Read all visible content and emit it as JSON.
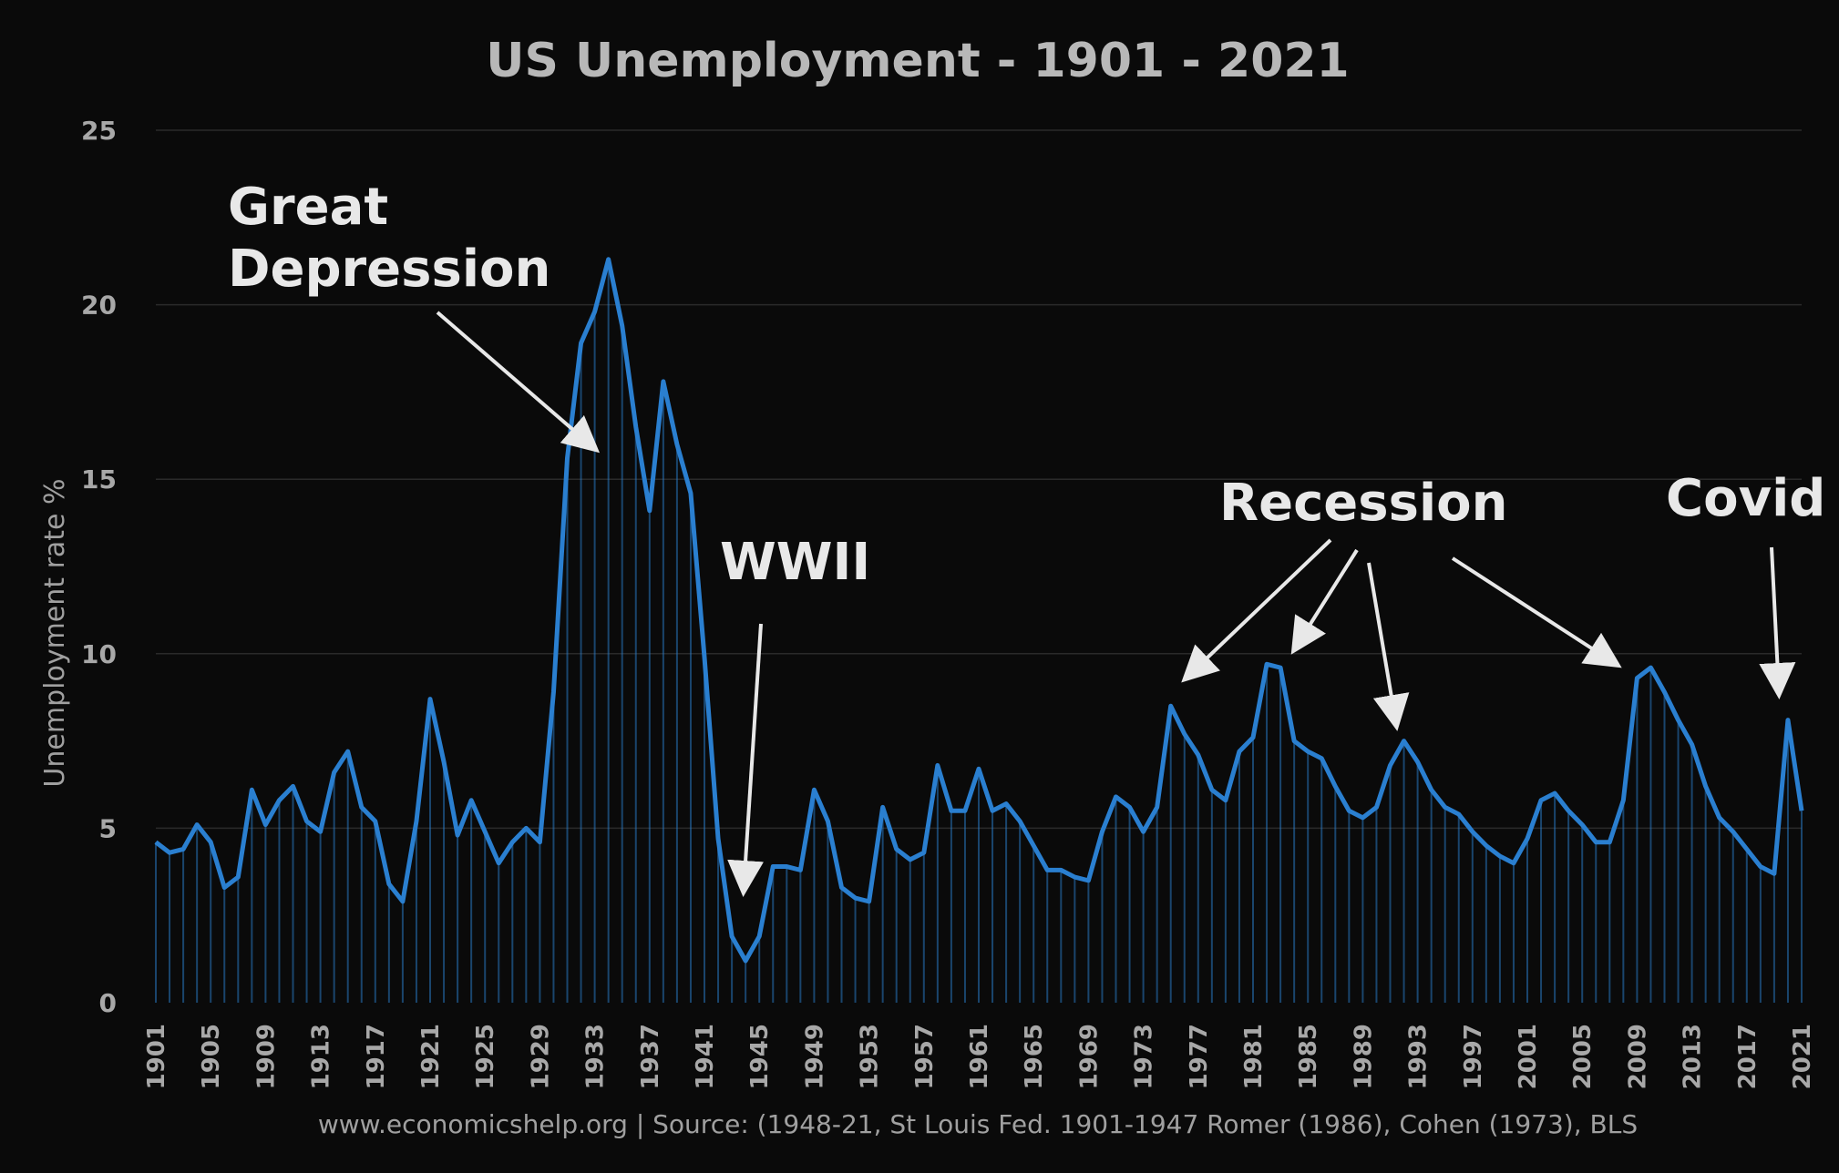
{
  "chart_data": {
    "type": "line",
    "title": "US Unemployment - 1901 - 2021",
    "ylabel": "Unemployment rate %",
    "xlabel": "",
    "source": "www.economicshelp.org  | Source: (1948-21, St Louis Fed. 1901-1947 Romer (1986), Cohen (1973), BLS",
    "ylim": [
      0,
      25
    ],
    "yticks": [
      "0",
      "5",
      "10",
      "15",
      "20",
      "25"
    ],
    "xticks": [
      "1901",
      "1905",
      "1909",
      "1913",
      "1917",
      "1921",
      "1925",
      "1929",
      "1933",
      "1937",
      "1941",
      "1945",
      "1949",
      "1953",
      "1957",
      "1961",
      "1965",
      "1969",
      "1973",
      "1977",
      "1981",
      "1985",
      "1989",
      "1993",
      "1997",
      "2001",
      "2005",
      "2009",
      "2013",
      "2017",
      "2021"
    ],
    "grid": true,
    "line_color": "#2a7fd0",
    "x_start": 1901,
    "series": [
      {
        "values": [
          4.6,
          4.3,
          4.4,
          5.1,
          4.6,
          3.3,
          3.6,
          6.1,
          5.1,
          5.8,
          6.2,
          5.2,
          4.9,
          6.6,
          7.2,
          5.6,
          5.2,
          3.4,
          2.9,
          5.2,
          8.7,
          6.9,
          4.8,
          5.8,
          4.9,
          4.0,
          4.6,
          5.0,
          4.6,
          8.9,
          15.6,
          18.9,
          19.8,
          21.3,
          19.4,
          16.5,
          14.1,
          17.8,
          16.0,
          14.6,
          9.9,
          4.7,
          1.9,
          1.2,
          1.9,
          3.9,
          3.9,
          3.8,
          6.1,
          5.2,
          3.3,
          3.0,
          2.9,
          5.6,
          4.4,
          4.1,
          4.3,
          6.8,
          5.5,
          5.5,
          6.7,
          5.5,
          5.7,
          5.2,
          4.5,
          3.8,
          3.8,
          3.6,
          3.5,
          4.9,
          5.9,
          5.6,
          4.9,
          5.6,
          8.5,
          7.7,
          7.1,
          6.1,
          5.8,
          7.2,
          7.6,
          9.7,
          9.6,
          7.5,
          7.2,
          7.0,
          6.2,
          5.5,
          5.3,
          5.6,
          6.8,
          7.5,
          6.9,
          6.1,
          5.6,
          5.4,
          4.9,
          4.5,
          4.2,
          4.0,
          4.7,
          5.8,
          6.0,
          5.5,
          5.1,
          4.6,
          4.6,
          5.8,
          9.3,
          9.6,
          8.9,
          8.1,
          7.4,
          6.2,
          5.3,
          4.9,
          4.4,
          3.9,
          3.7,
          8.1,
          5.5
        ]
      }
    ],
    "annotations": [
      {
        "lines": [
          "Great",
          "Depression"
        ]
      },
      {
        "lines": [
          "WWII"
        ]
      },
      {
        "lines": [
          "Recession"
        ]
      },
      {
        "lines": [
          "Covid"
        ]
      }
    ]
  }
}
